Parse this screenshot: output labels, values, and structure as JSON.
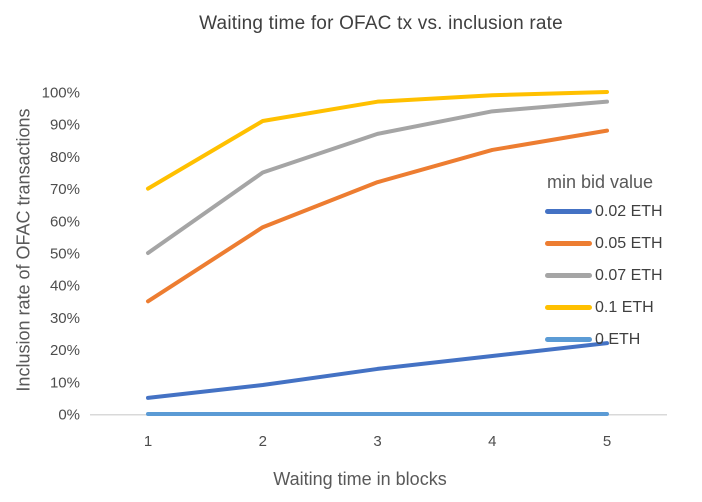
{
  "title": "Waiting time for OFAC tx vs. inclusion rate",
  "chart_data": {
    "type": "line",
    "x": [
      1,
      2,
      3,
      4,
      5
    ],
    "xlabel": "Waiting time in blocks",
    "ylabel": "Inclusion rate of OFAC transactions",
    "ylim": [
      0,
      100
    ],
    "ytick_step": 10,
    "ytick_suffix": "%",
    "grid": false,
    "legend_title": "min bid value",
    "legend_position": "right-middle",
    "axis_color": "#d9d9d9",
    "text_color": "#4d4d4d",
    "series": [
      {
        "name": "0.02 ETH",
        "color": "#4472c4",
        "values": [
          5,
          9,
          14,
          18,
          22
        ]
      },
      {
        "name": "0.05 ETH",
        "color": "#ed7d31",
        "values": [
          35,
          58,
          72,
          82,
          88
        ]
      },
      {
        "name": "0.07 ETH",
        "color": "#a5a5a5",
        "values": [
          50,
          75,
          87,
          94,
          97
        ]
      },
      {
        "name": "0.1 ETH",
        "color": "#ffc000",
        "values": [
          70,
          91,
          97,
          99,
          100
        ]
      },
      {
        "name": "0 ETH",
        "color": "#5b9bd5",
        "values": [
          0,
          0,
          0,
          0,
          0
        ]
      }
    ]
  }
}
